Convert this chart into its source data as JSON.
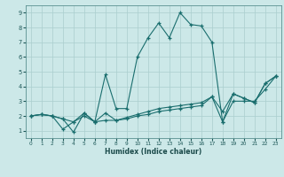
{
  "xlabel": "Humidex (Indice chaleur)",
  "background_color": "#cce8e8",
  "line_color": "#1a6e6e",
  "grid_color": "#aacece",
  "xlim": [
    -0.5,
    23.5
  ],
  "ylim": [
    0.5,
    9.5
  ],
  "xticks": [
    0,
    1,
    2,
    3,
    4,
    5,
    6,
    7,
    8,
    9,
    10,
    11,
    12,
    13,
    14,
    15,
    16,
    17,
    18,
    19,
    20,
    21,
    22,
    23
  ],
  "yticks": [
    1,
    2,
    3,
    4,
    5,
    6,
    7,
    8,
    9
  ],
  "s1x": [
    0,
    1,
    2,
    3,
    4,
    5,
    6,
    7,
    8,
    9,
    10,
    11,
    12,
    13,
    14,
    15,
    16,
    17,
    18,
    19,
    20,
    21,
    22,
    23
  ],
  "s1y": [
    2.0,
    2.1,
    2.0,
    1.8,
    0.9,
    2.2,
    1.6,
    4.8,
    2.5,
    2.5,
    6.0,
    7.3,
    8.3,
    7.3,
    9.0,
    8.2,
    8.1,
    7.0,
    1.6,
    3.5,
    3.2,
    2.9,
    4.2,
    4.7
  ],
  "s2x": [
    0,
    1,
    2,
    3,
    4,
    5,
    6,
    7,
    8,
    9,
    10,
    11,
    12,
    13,
    14,
    15,
    16,
    17,
    18,
    19,
    20,
    21,
    22,
    23
  ],
  "s2y": [
    2.0,
    2.1,
    2.0,
    1.1,
    1.6,
    2.0,
    1.6,
    1.7,
    1.7,
    1.8,
    2.0,
    2.1,
    2.3,
    2.4,
    2.5,
    2.6,
    2.7,
    3.3,
    1.6,
    3.0,
    3.0,
    3.0,
    3.8,
    4.7
  ],
  "s3x": [
    0,
    1,
    2,
    3,
    4,
    5,
    6,
    7,
    8,
    9,
    10,
    11,
    12,
    13,
    14,
    15,
    16,
    17,
    18,
    19,
    20,
    21,
    22,
    23
  ],
  "s3y": [
    2.0,
    2.1,
    2.0,
    1.8,
    1.6,
    2.2,
    1.6,
    2.2,
    1.7,
    1.9,
    2.1,
    2.3,
    2.5,
    2.6,
    2.7,
    2.8,
    2.9,
    3.3,
    2.3,
    3.5,
    3.2,
    2.9,
    4.2,
    4.7
  ]
}
